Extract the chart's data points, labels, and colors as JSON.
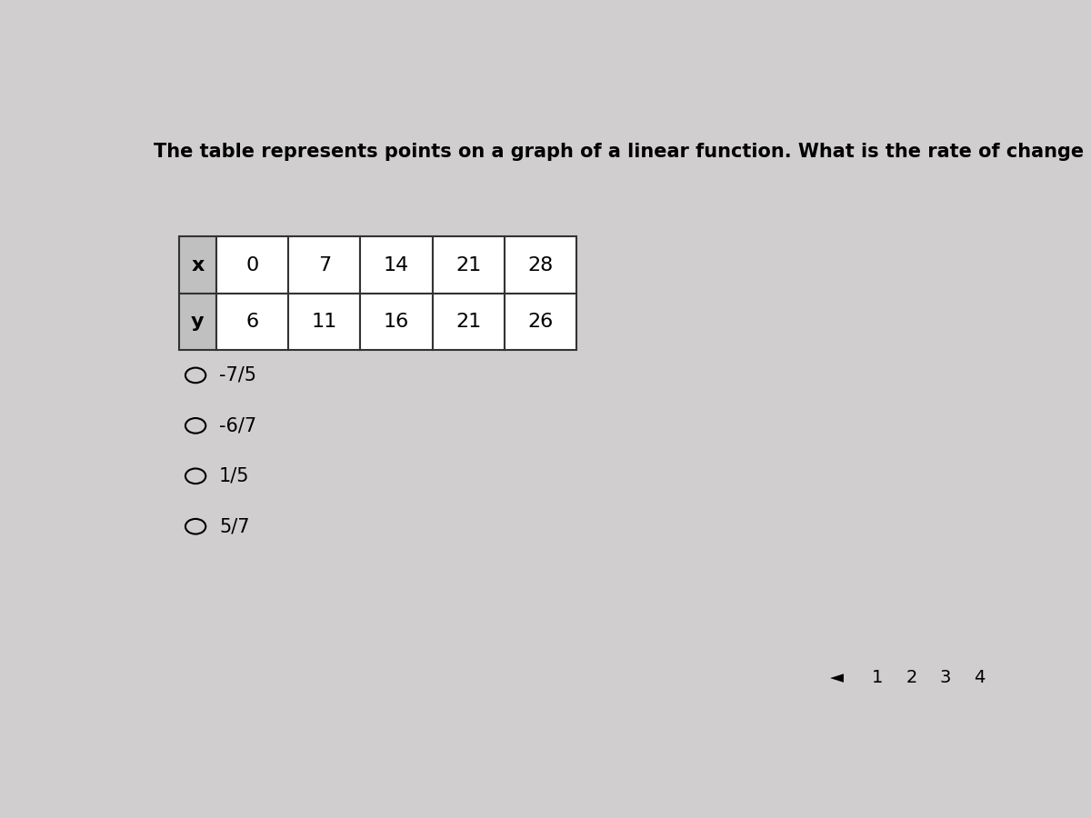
{
  "bg_color": "#d0cece",
  "title": "The table represents points on a graph of a linear function. What is the rate of change of y with respect to x?",
  "title_fontsize": 15,
  "table": {
    "headers": [
      "x",
      "y"
    ],
    "x_values": [
      "0",
      "7",
      "14",
      "21",
      "28"
    ],
    "y_values": [
      "6",
      "11",
      "16",
      "21",
      "26"
    ],
    "header_bg": "#c0c0c0",
    "cell_bg": "#ffffff",
    "border_color": "#333333"
  },
  "options": [
    "-7/5",
    "-6/7",
    "1/5",
    "5/7"
  ],
  "option_fontsize": 15,
  "page_numbers": [
    "1",
    "2",
    "3",
    "4"
  ],
  "page_arrow": "◄"
}
